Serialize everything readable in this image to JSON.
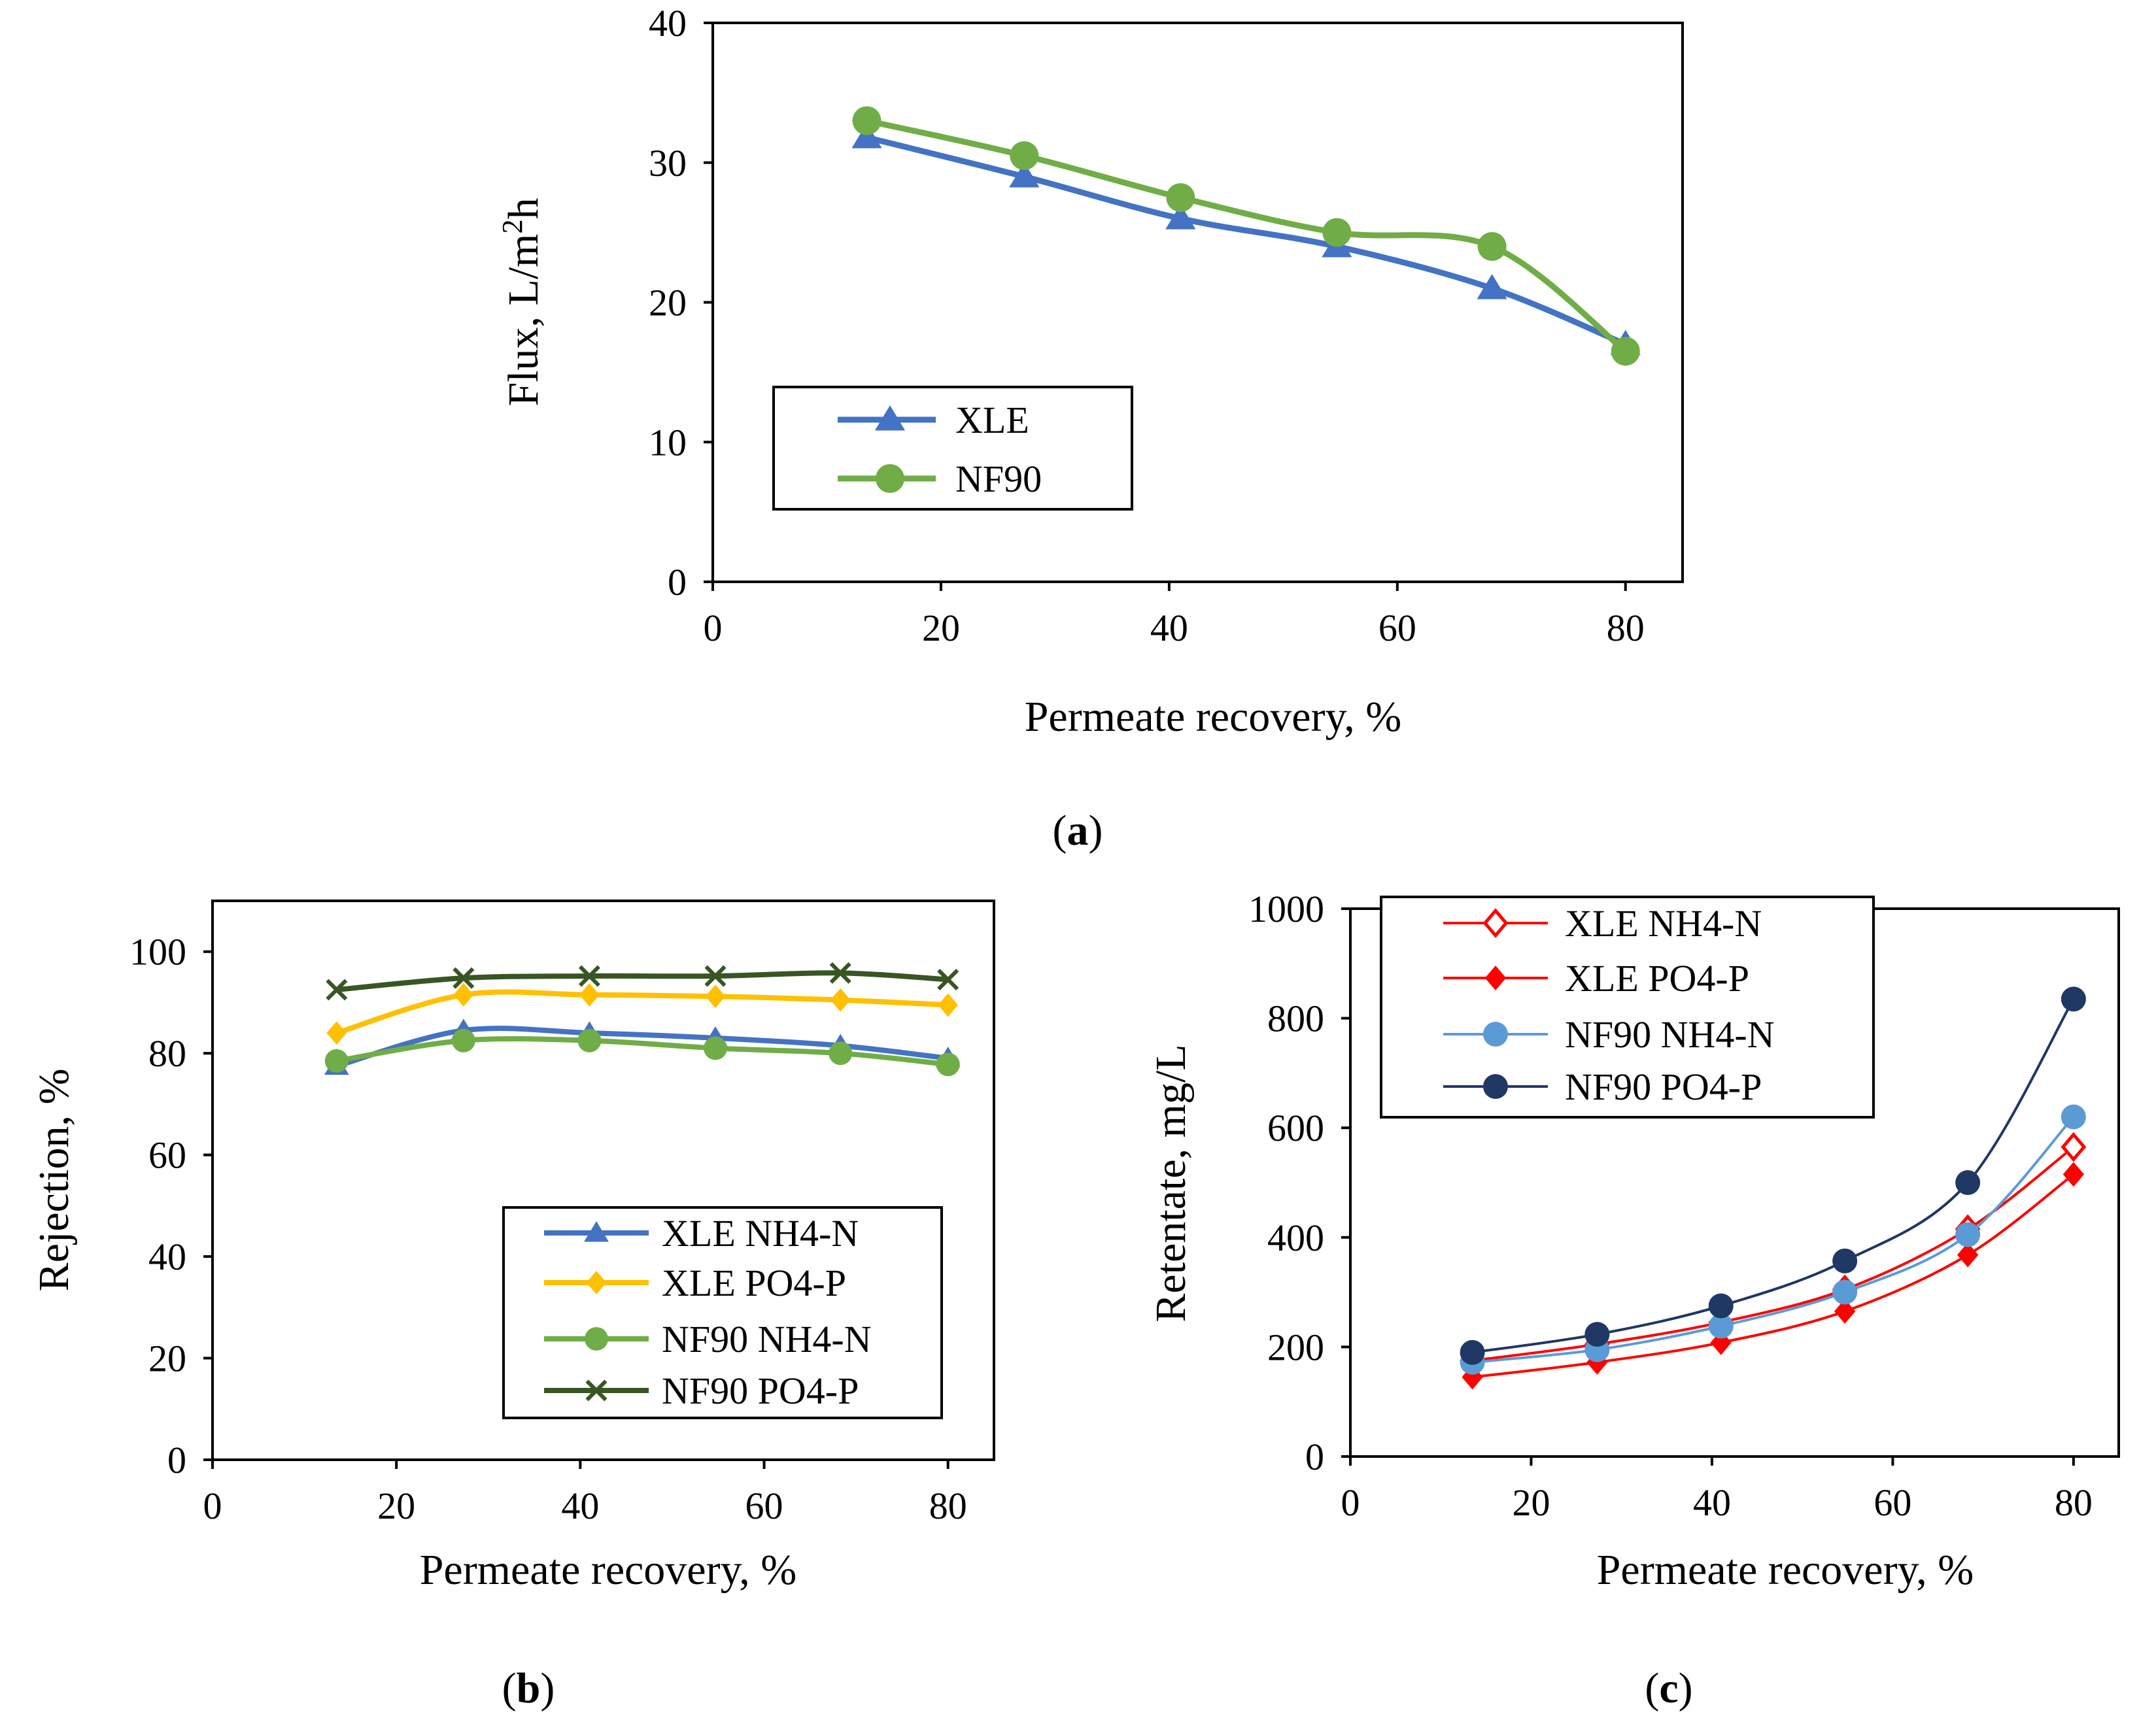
{
  "chart_data": [
    {
      "id": "a",
      "type": "line",
      "caption": "a",
      "xlabel": "Permeate recovery, %",
      "ylabel": "Flux, L/m",
      "ylabel_sup": "2",
      "ylabel_tail": "h",
      "xlim": [
        0,
        85
      ],
      "ylim": [
        0,
        40
      ],
      "xticks": [
        0,
        20,
        40,
        60,
        80
      ],
      "yticks": [
        0,
        10,
        20,
        30,
        40
      ],
      "grid": false,
      "legend_position": "bottom-left",
      "series": [
        {
          "name": "XLE",
          "color": "#4472C4",
          "marker": "triangle",
          "x": [
            13.5,
            27.3,
            41,
            54.7,
            68.3,
            80
          ],
          "y": [
            31.8,
            29,
            26,
            24,
            21,
            17
          ]
        },
        {
          "name": "NF90",
          "color": "#70AD47",
          "marker": "circle",
          "x": [
            13.5,
            27.3,
            41,
            54.7,
            68.3,
            80
          ],
          "y": [
            33,
            30.5,
            27.5,
            25,
            24,
            16.5
          ]
        }
      ]
    },
    {
      "id": "b",
      "type": "line",
      "caption": "b",
      "xlabel": "Permeate recovery, %",
      "ylabel": "Rejection, %",
      "xlim": [
        0,
        85
      ],
      "ylim": [
        0,
        110
      ],
      "xticks": [
        0,
        20,
        40,
        60,
        80
      ],
      "yticks": [
        0,
        20,
        40,
        60,
        80,
        100
      ],
      "grid": false,
      "legend_position": "bottom-right",
      "series": [
        {
          "name": "XLE NH4-N",
          "color": "#4472C4",
          "marker": "triangle",
          "x": [
            13.5,
            27.3,
            41,
            54.7,
            68.3,
            80
          ],
          "y": [
            77.5,
            84.5,
            84,
            83,
            81.5,
            79
          ]
        },
        {
          "name": "XLE PO4-P",
          "color": "#FFC000",
          "marker": "diamond",
          "x": [
            13.5,
            27.3,
            41,
            54.7,
            68.3,
            80
          ],
          "y": [
            84,
            91.5,
            91.5,
            91.2,
            90.5,
            89.5
          ]
        },
        {
          "name": "NF90 NH4-N",
          "color": "#70AD47",
          "marker": "circle",
          "x": [
            13.5,
            27.3,
            41,
            54.7,
            68.3,
            80
          ],
          "y": [
            78.5,
            82.5,
            82.5,
            81,
            80,
            77.8
          ]
        },
        {
          "name": "NF90 PO4-P",
          "color": "#375623",
          "marker": "x",
          "x": [
            13.5,
            27.3,
            41,
            54.7,
            68.3,
            80
          ],
          "y": [
            92.5,
            94.8,
            95.2,
            95.2,
            95.8,
            94.5
          ]
        }
      ]
    },
    {
      "id": "c",
      "type": "line",
      "caption": "c",
      "xlabel": "Permeate recovery, %",
      "ylabel": "Retentate, mg/L",
      "xlim": [
        0,
        85
      ],
      "ylim": [
        0,
        1000
      ],
      "xticks": [
        0,
        20,
        40,
        60,
        80
      ],
      "yticks": [
        0,
        200,
        400,
        600,
        800,
        1000
      ],
      "grid": false,
      "legend_position": "top-left",
      "series": [
        {
          "name": "XLE NH4-N",
          "color": "#FF0000",
          "marker": "diamond-open",
          "x": [
            13.5,
            27.3,
            41,
            54.7,
            68.3,
            80
          ],
          "y": [
            175,
            205,
            245,
            305,
            415,
            565
          ]
        },
        {
          "name": "XLE PO4-P",
          "color": "#FF0000",
          "marker": "diamond",
          "x": [
            13.5,
            27.3,
            41,
            54.7,
            68.3,
            80
          ],
          "y": [
            145,
            172,
            208,
            265,
            368,
            515
          ]
        },
        {
          "name": "NF90 NH4-N",
          "color": "#5B9BD5",
          "marker": "circle",
          "x": [
            13.5,
            27.3,
            41,
            54.7,
            68.3,
            80
          ],
          "y": [
            172,
            195,
            238,
            300,
            405,
            620
          ]
        },
        {
          "name": "NF90 PO4-P",
          "color": "#1F3864",
          "marker": "circle",
          "x": [
            13.5,
            27.3,
            41,
            54.7,
            68.3,
            80
          ],
          "y": [
            190,
            223,
            275,
            357,
            500,
            835
          ]
        }
      ]
    }
  ]
}
